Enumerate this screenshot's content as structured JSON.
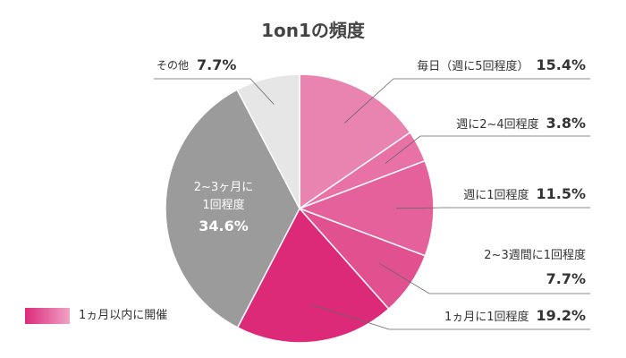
{
  "chart_data": {
    "type": "pie",
    "title": "1on1の頻度",
    "categories": [
      "毎日（週に5回程度）",
      "週に2~4回程度",
      "週に1回程度",
      "2~3週間に1回程度",
      "1ヵ月に1回程度",
      "2~3ヶ月に\n1回程度",
      "その他"
    ],
    "values": [
      15.4,
      3.8,
      11.5,
      7.7,
      19.2,
      34.6,
      7.7
    ],
    "value_labels": [
      "15.4%",
      "3.8%",
      "11.5%",
      "7.7%",
      "19.2%",
      "34.6%",
      "7.7%"
    ],
    "colors": [
      "#e983b0",
      "#e872a5",
      "#e5619b",
      "#e1508f",
      "#dc2a79",
      "#9b9b9b",
      "#e6e6e6"
    ],
    "legend": {
      "label": "1ヵ月以内に開催",
      "colors": [
        "#dc2a79",
        "#f0a3c6"
      ]
    }
  }
}
